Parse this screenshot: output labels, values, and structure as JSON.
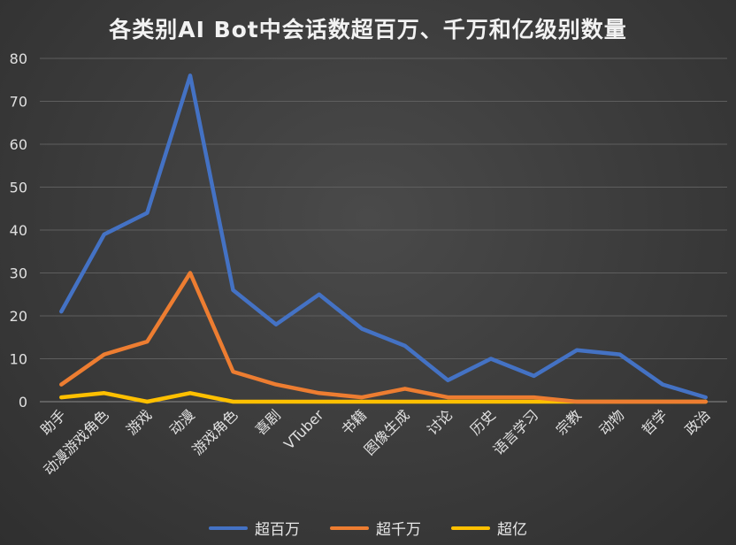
{
  "chart_data": {
    "type": "line",
    "title": "各类别AI Bot中会话数超百万、千万和亿级别数量",
    "categories": [
      "助手",
      "动漫游戏角色",
      "游戏",
      "动漫",
      "游戏角色",
      "喜剧",
      "VTuber",
      "书籍",
      "图像生成",
      "讨论",
      "历史",
      "语言学习",
      "宗教",
      "动物",
      "哲学",
      "政治"
    ],
    "series": [
      {
        "name": "超百万",
        "color": "#4472c4",
        "values": [
          21,
          39,
          44,
          76,
          26,
          18,
          25,
          17,
          13,
          5,
          10,
          6,
          12,
          11,
          4,
          1
        ]
      },
      {
        "name": "超千万",
        "color": "#ed7d31",
        "values": [
          4,
          11,
          14,
          30,
          7,
          4,
          2,
          1,
          3,
          1,
          1,
          1,
          0,
          0,
          0,
          0
        ]
      },
      {
        "name": "超亿",
        "color": "#ffc000",
        "values": [
          1,
          2,
          0,
          2,
          0,
          0,
          0,
          0,
          0,
          0,
          0,
          0,
          0,
          0,
          0,
          0
        ]
      }
    ],
    "ylim": [
      0,
      80
    ],
    "yticks": [
      0,
      10,
      20,
      30,
      40,
      50,
      60,
      70,
      80
    ],
    "grid": true,
    "legend": "bottom"
  }
}
